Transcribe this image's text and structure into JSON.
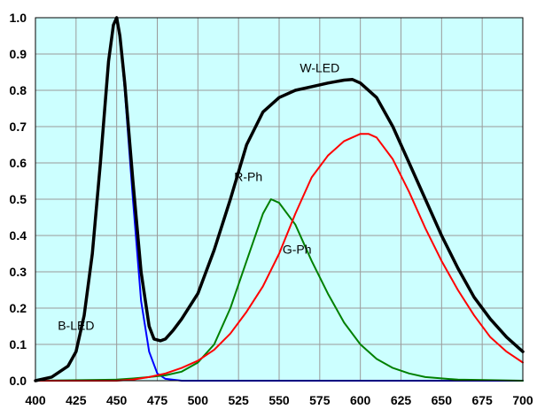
{
  "chart_data": {
    "type": "line",
    "title": "",
    "xlabel": "",
    "ylabel": "",
    "xlim": [
      400,
      700
    ],
    "ylim": [
      0,
      1.0
    ],
    "x_ticks": [
      400,
      425,
      450,
      475,
      500,
      525,
      550,
      575,
      600,
      625,
      650,
      675,
      700
    ],
    "y_ticks": [
      0.0,
      0.1,
      0.2,
      0.3,
      0.4,
      0.5,
      0.6,
      0.7,
      0.8,
      0.9,
      1.0
    ],
    "x_tick_labels": [
      "400",
      "425",
      "450",
      "475",
      "500",
      "525",
      "550",
      "575",
      "600",
      "625",
      "650",
      "675",
      "700"
    ],
    "y_tick_labels": [
      "0.0",
      "0.1",
      "0.2",
      "0.3",
      "0.4",
      "0.5",
      "0.6",
      "0.7",
      "0.8",
      "0.9",
      "1.0"
    ],
    "grid": true,
    "colors": {
      "plot_background": "#ccffff",
      "grid": "#9a9a9a"
    },
    "series": [
      {
        "name": "W-LED",
        "color": "#000000",
        "label_at": [
          575,
          0.85
        ],
        "points": [
          [
            400,
            0.0
          ],
          [
            410,
            0.01
          ],
          [
            420,
            0.04
          ],
          [
            425,
            0.08
          ],
          [
            430,
            0.18
          ],
          [
            435,
            0.35
          ],
          [
            440,
            0.6
          ],
          [
            445,
            0.88
          ],
          [
            448,
            0.98
          ],
          [
            450,
            1.0
          ],
          [
            452,
            0.95
          ],
          [
            455,
            0.82
          ],
          [
            460,
            0.55
          ],
          [
            465,
            0.3
          ],
          [
            470,
            0.15
          ],
          [
            473,
            0.115
          ],
          [
            477,
            0.11
          ],
          [
            480,
            0.115
          ],
          [
            485,
            0.14
          ],
          [
            490,
            0.17
          ],
          [
            500,
            0.24
          ],
          [
            510,
            0.36
          ],
          [
            520,
            0.5
          ],
          [
            530,
            0.65
          ],
          [
            540,
            0.74
          ],
          [
            550,
            0.78
          ],
          [
            560,
            0.8
          ],
          [
            570,
            0.81
          ],
          [
            580,
            0.82
          ],
          [
            590,
            0.828
          ],
          [
            595,
            0.83
          ],
          [
            600,
            0.82
          ],
          [
            610,
            0.78
          ],
          [
            620,
            0.7
          ],
          [
            630,
            0.6
          ],
          [
            640,
            0.5
          ],
          [
            650,
            0.4
          ],
          [
            660,
            0.31
          ],
          [
            670,
            0.23
          ],
          [
            680,
            0.17
          ],
          [
            690,
            0.12
          ],
          [
            700,
            0.08
          ]
        ]
      },
      {
        "name": "B-LED",
        "color": "#0000ff",
        "label_at": [
          425,
          0.14
        ],
        "points": [
          [
            400,
            0.0
          ],
          [
            410,
            0.01
          ],
          [
            420,
            0.04
          ],
          [
            425,
            0.08
          ],
          [
            430,
            0.18
          ],
          [
            435,
            0.35
          ],
          [
            440,
            0.6
          ],
          [
            445,
            0.88
          ],
          [
            448,
            0.98
          ],
          [
            450,
            1.0
          ],
          [
            452,
            0.95
          ],
          [
            455,
            0.8
          ],
          [
            460,
            0.5
          ],
          [
            465,
            0.22
          ],
          [
            470,
            0.08
          ],
          [
            475,
            0.02
          ],
          [
            480,
            0.005
          ],
          [
            490,
            0.0
          ],
          [
            700,
            0.0
          ]
        ]
      },
      {
        "name": "G-Ph",
        "color": "#008000",
        "label_at": [
          561,
          0.35
        ],
        "points": [
          [
            400,
            0.0
          ],
          [
            450,
            0.003
          ],
          [
            460,
            0.006
          ],
          [
            470,
            0.01
          ],
          [
            480,
            0.015
          ],
          [
            490,
            0.025
          ],
          [
            500,
            0.05
          ],
          [
            510,
            0.1
          ],
          [
            520,
            0.2
          ],
          [
            530,
            0.33
          ],
          [
            540,
            0.46
          ],
          [
            545,
            0.5
          ],
          [
            550,
            0.49
          ],
          [
            560,
            0.43
          ],
          [
            570,
            0.33
          ],
          [
            580,
            0.24
          ],
          [
            590,
            0.16
          ],
          [
            600,
            0.1
          ],
          [
            610,
            0.06
          ],
          [
            620,
            0.035
          ],
          [
            630,
            0.02
          ],
          [
            640,
            0.01
          ],
          [
            660,
            0.003
          ],
          [
            700,
            0.0
          ]
        ]
      },
      {
        "name": "R-Ph",
        "color": "#ff0000",
        "label_at": [
          531,
          0.55
        ],
        "points": [
          [
            400,
            0.0
          ],
          [
            450,
            0.0
          ],
          [
            460,
            0.003
          ],
          [
            470,
            0.01
          ],
          [
            480,
            0.02
          ],
          [
            490,
            0.035
          ],
          [
            500,
            0.055
          ],
          [
            510,
            0.085
          ],
          [
            520,
            0.13
          ],
          [
            530,
            0.19
          ],
          [
            540,
            0.26
          ],
          [
            550,
            0.35
          ],
          [
            560,
            0.46
          ],
          [
            570,
            0.56
          ],
          [
            580,
            0.62
          ],
          [
            590,
            0.66
          ],
          [
            600,
            0.68
          ],
          [
            605,
            0.68
          ],
          [
            610,
            0.67
          ],
          [
            620,
            0.61
          ],
          [
            630,
            0.52
          ],
          [
            640,
            0.42
          ],
          [
            650,
            0.33
          ],
          [
            660,
            0.25
          ],
          [
            670,
            0.18
          ],
          [
            680,
            0.12
          ],
          [
            690,
            0.08
          ],
          [
            700,
            0.05
          ]
        ]
      }
    ]
  }
}
